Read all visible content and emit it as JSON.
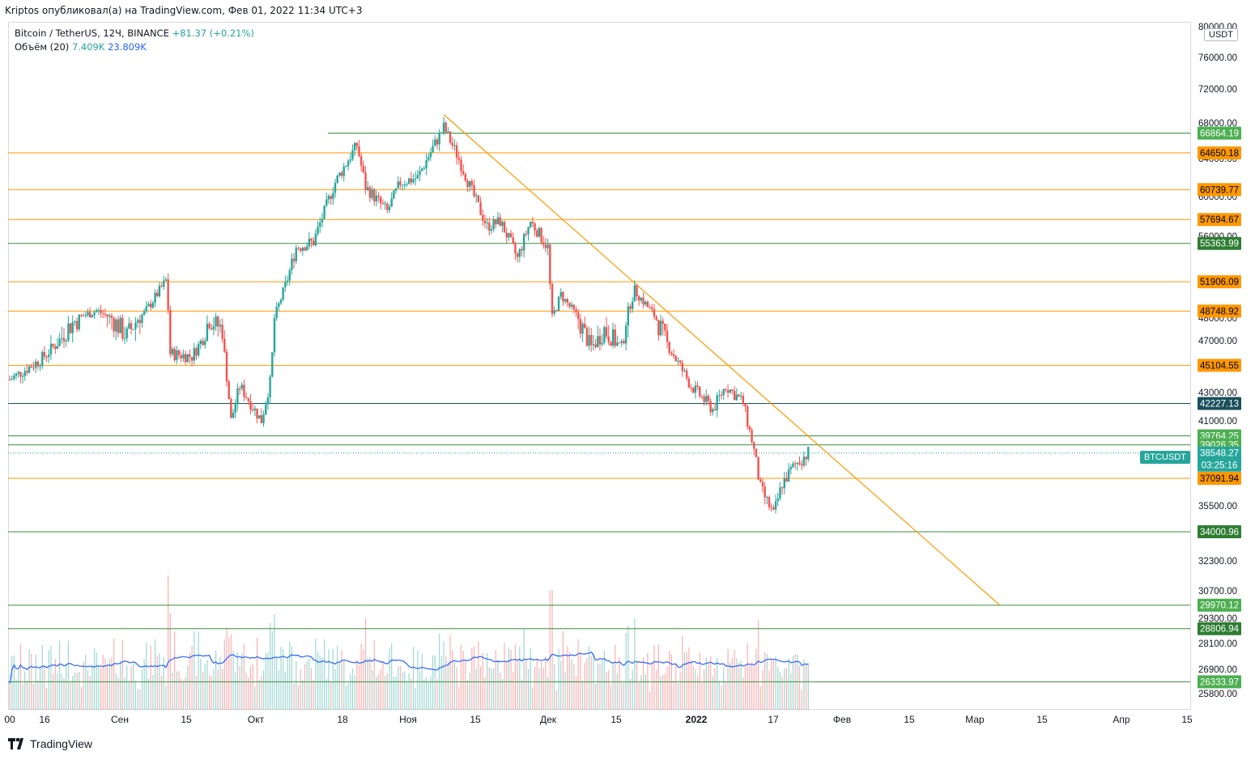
{
  "header": {
    "title": "Kriptos опубликовал(а) на TradingView.com, Фев 01, 2022 11:34 UTC+3"
  },
  "legend": {
    "symbol": "Bitcoin / TetherUS, 12Ч, BINANCE",
    "change": "+81.37 (+0.21%)",
    "volume_label": "Объём (20)",
    "volume_value": "7.409K",
    "volume_ma": "23.809K"
  },
  "unit_label": "USDT",
  "symbol_badge": "BTCUSDT",
  "footer": {
    "brand": "TradingView"
  },
  "colors": {
    "up": "#26a69a",
    "down": "#ef5350",
    "orange": "#ff9800",
    "green_line": "#388e3c",
    "dark_line": "#1b4f5c",
    "vol_ma": "#2962ff"
  },
  "chart_data": {
    "type": "candlestick",
    "symbol": "BTCUSDT",
    "y_axis": {
      "ticks": [
        "80000.00",
        "76000.00",
        "72000.00",
        "68000.00",
        "64000.00",
        "60000.00",
        "56000.00",
        "52000.00",
        "48000.00",
        "47000.00",
        "43000.00",
        "41000.00",
        "35500.00",
        "32300.00",
        "30700.00",
        "29300.00",
        "28100.00",
        "26900.00",
        "25800.00"
      ]
    },
    "x_axis": {
      "ticks": [
        "00",
        "16",
        "Сен",
        "15",
        "Окт",
        "18",
        "Ноя",
        "15",
        "Дек",
        "15",
        "2022",
        "17",
        "Фев",
        "15",
        "Мар",
        "15",
        "Апр",
        "15"
      ]
    },
    "horizontal_levels": [
      {
        "value": 66864.19,
        "label": "66864.19",
        "kind": "green"
      },
      {
        "value": 64650.18,
        "label": "64650.18",
        "kind": "orange"
      },
      {
        "value": 60739.77,
        "label": "60739.77",
        "kind": "orange"
      },
      {
        "value": 57694.67,
        "label": "57694.67",
        "kind": "orange"
      },
      {
        "value": 55363.99,
        "label": "55363.99",
        "kind": "green"
      },
      {
        "value": 51906.09,
        "label": "51906.09",
        "kind": "orange"
      },
      {
        "value": 48748.92,
        "label": "48748.92",
        "kind": "orange"
      },
      {
        "value": 45104.55,
        "label": "45104.55",
        "kind": "orange"
      },
      {
        "value": 42227.13,
        "label": "42227.13",
        "kind": "dark"
      },
      {
        "value": 39764.25,
        "label": "39764.25",
        "kind": "green"
      },
      {
        "value": 39026.35,
        "label": "39026.35",
        "kind": "green"
      },
      {
        "value": 37091.94,
        "label": "37091.94",
        "kind": "orange"
      },
      {
        "value": 34000.96,
        "label": "34000.96",
        "kind": "green"
      },
      {
        "value": 29970.12,
        "label": "29970.12",
        "kind": "green"
      },
      {
        "value": 28806.94,
        "label": "28806.94",
        "kind": "green"
      },
      {
        "value": 26333.97,
        "label": "26333.97",
        "kind": "green"
      }
    ],
    "current_price": {
      "value": 38548.27,
      "label": "38548.27",
      "countdown": "03:25:16"
    },
    "trendline": {
      "from_date": "2021-11-09",
      "from_price": 69000,
      "to_date": "2022-03-17",
      "to_price": 30000
    },
    "anchors": [
      {
        "date": "2021-08-01",
        "price": 44000
      },
      {
        "date": "2021-08-08",
        "price": 45500
      },
      {
        "date": "2021-08-14",
        "price": 47500
      },
      {
        "date": "2021-08-21",
        "price": 48800
      },
      {
        "date": "2021-08-28",
        "price": 47200
      },
      {
        "date": "2021-09-01",
        "price": 48500
      },
      {
        "date": "2021-09-06",
        "price": 52000
      },
      {
        "date": "2021-09-07",
        "price": 46000
      },
      {
        "date": "2021-09-12",
        "price": 45800
      },
      {
        "date": "2021-09-16",
        "price": 48000
      },
      {
        "date": "2021-09-19",
        "price": 47500
      },
      {
        "date": "2021-09-21",
        "price": 41000
      },
      {
        "date": "2021-09-23",
        "price": 43500
      },
      {
        "date": "2021-09-28",
        "price": 41000
      },
      {
        "date": "2021-09-30",
        "price": 43800
      },
      {
        "date": "2021-10-01",
        "price": 48000
      },
      {
        "date": "2021-10-06",
        "price": 55000
      },
      {
        "date": "2021-10-10",
        "price": 55500
      },
      {
        "date": "2021-10-15",
        "price": 61500
      },
      {
        "date": "2021-10-20",
        "price": 65500
      },
      {
        "date": "2021-10-22",
        "price": 61000
      },
      {
        "date": "2021-10-27",
        "price": 58500
      },
      {
        "date": "2021-10-30",
        "price": 61500
      },
      {
        "date": "2021-11-03",
        "price": 62000
      },
      {
        "date": "2021-11-09",
        "price": 67500
      },
      {
        "date": "2021-11-12",
        "price": 64500
      },
      {
        "date": "2021-11-16",
        "price": 60000
      },
      {
        "date": "2021-11-19",
        "price": 57000
      },
      {
        "date": "2021-11-22",
        "price": 57500
      },
      {
        "date": "2021-11-26",
        "price": 54000
      },
      {
        "date": "2021-11-29",
        "price": 57500
      },
      {
        "date": "2021-12-03",
        "price": 55000
      },
      {
        "date": "2021-12-04",
        "price": 48000
      },
      {
        "date": "2021-12-06",
        "price": 50500
      },
      {
        "date": "2021-12-10",
        "price": 48000
      },
      {
        "date": "2021-12-13",
        "price": 46500
      },
      {
        "date": "2021-12-16",
        "price": 47500
      },
      {
        "date": "2021-12-20",
        "price": 46500
      },
      {
        "date": "2021-12-23",
        "price": 51000
      },
      {
        "date": "2021-12-28",
        "price": 48000
      },
      {
        "date": "2021-12-31",
        "price": 46500
      },
      {
        "date": "2022-01-05",
        "price": 43500
      },
      {
        "date": "2022-01-10",
        "price": 41800
      },
      {
        "date": "2022-01-13",
        "price": 43500
      },
      {
        "date": "2022-01-17",
        "price": 42300
      },
      {
        "date": "2022-01-21",
        "price": 36500
      },
      {
        "date": "2022-01-24",
        "price": 35000
      },
      {
        "date": "2022-01-26",
        "price": 36800
      },
      {
        "date": "2022-01-29",
        "price": 37900
      },
      {
        "date": "2022-02-01",
        "price": 38548
      }
    ]
  }
}
